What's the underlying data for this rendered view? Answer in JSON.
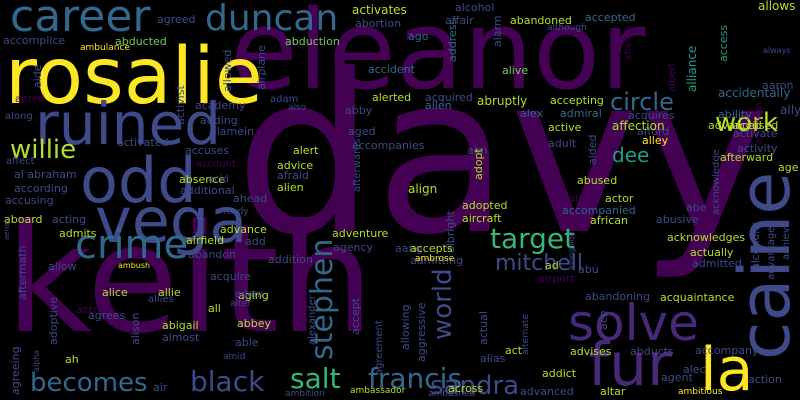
{
  "cloud": {
    "palette": [
      "#440154",
      "#482878",
      "#3e4a89",
      "#31688e",
      "#26828e",
      "#1f9e89",
      "#35b779",
      "#6ece58",
      "#b5de2b",
      "#fde725"
    ],
    "words": [
      {
        "text": "davy",
        "color": "#440154"
      },
      {
        "text": "keith",
        "color": "#440154"
      },
      {
        "text": "eleanor",
        "color": "#440154"
      },
      {
        "text": "rosalie",
        "color": "#fde725"
      },
      {
        "text": "caine",
        "color": "#3e4a89"
      },
      {
        "text": "ruined",
        "color": "#3e4a89"
      },
      {
        "text": "odd",
        "color": "#3e4a89"
      },
      {
        "text": "vega",
        "color": "#3e4a89"
      },
      {
        "text": "solve",
        "color": "#482878"
      },
      {
        "text": "career",
        "color": "#31688e"
      },
      {
        "text": "duncan",
        "color": "#31688e"
      },
      {
        "text": "fur",
        "color": "#482878"
      },
      {
        "text": "la",
        "color": "#fde725"
      },
      {
        "text": "crime",
        "color": "#31688e"
      },
      {
        "text": "work",
        "color": "#b5de2b"
      },
      {
        "text": "target",
        "color": "#35b779"
      },
      {
        "text": "circle",
        "color": "#31688e"
      },
      {
        "text": "willie",
        "color": "#b5de2b"
      },
      {
        "text": "salt",
        "color": "#35b779"
      },
      {
        "text": "francis",
        "color": "#31688e"
      },
      {
        "text": "sandra",
        "color": "#3e4a89"
      },
      {
        "text": "black",
        "color": "#3e4a89"
      },
      {
        "text": "becomes",
        "color": "#31688e"
      },
      {
        "text": "stephen",
        "color": "#31688e"
      },
      {
        "text": "world",
        "color": "#3e4a89"
      },
      {
        "text": "mitchell",
        "color": "#3e4a89"
      },
      {
        "text": "dee",
        "color": "#1f9e89"
      },
      {
        "text": "abduction",
        "color": "#6ece58"
      },
      {
        "text": "aaron",
        "color": "#3e4a89"
      },
      {
        "text": "alliance",
        "color": "#1f9e89"
      },
      {
        "text": "access",
        "color": "#1f9e89"
      },
      {
        "text": "allows",
        "color": "#b5de2b"
      },
      {
        "text": "activates",
        "color": "#b5de2b"
      },
      {
        "text": "alcohol",
        "color": "#3e4a89"
      },
      {
        "text": "agreed",
        "color": "#3e4a89"
      },
      {
        "text": "accomplice",
        "color": "#3e4a89"
      },
      {
        "text": "ambulance",
        "color": "#fde725"
      },
      {
        "text": "abducted",
        "color": "#6ece58"
      },
      {
        "text": "allowed",
        "color": "#3e4a89"
      },
      {
        "text": "airplane",
        "color": "#3e4a89"
      },
      {
        "text": "activist",
        "color": "#3e4a89"
      },
      {
        "text": "aide",
        "color": "#3e4a89"
      },
      {
        "text": "abortion",
        "color": "#3e4a89"
      },
      {
        "text": "address",
        "color": "#31688e"
      },
      {
        "text": "affair",
        "color": "#3e4a89"
      },
      {
        "text": "alarm",
        "color": "#3e4a89"
      },
      {
        "text": "abandoned",
        "color": "#b5de2b"
      },
      {
        "text": "accepted",
        "color": "#31688e"
      },
      {
        "text": "accident",
        "color": "#31688e"
      },
      {
        "text": "alive",
        "color": "#6ece58"
      },
      {
        "text": "afterlife",
        "color": "#440154"
      },
      {
        "text": "albert",
        "color": "#440154"
      },
      {
        "text": "accidentally",
        "color": "#31688e"
      },
      {
        "text": "ally",
        "color": "#3e4a89"
      },
      {
        "text": "american",
        "color": "#440154"
      },
      {
        "text": "ago",
        "color": "#31688e"
      },
      {
        "text": "always",
        "color": "#3e4a89"
      },
      {
        "text": "although",
        "color": "#3e4a89"
      },
      {
        "text": "academy",
        "color": "#3e4a89"
      },
      {
        "text": "adding",
        "color": "#3e4a89"
      },
      {
        "text": "alamein",
        "color": "#3e4a89"
      },
      {
        "text": "adam",
        "color": "#3e4a89"
      },
      {
        "text": "also",
        "color": "#3e4a89"
      },
      {
        "text": "abby",
        "color": "#3e4a89"
      },
      {
        "text": "alerted",
        "color": "#b5de2b"
      },
      {
        "text": "acquired",
        "color": "#3e4a89"
      },
      {
        "text": "allen",
        "color": "#31688e"
      },
      {
        "text": "abruptly",
        "color": "#b5de2b"
      },
      {
        "text": "accepting",
        "color": "#b5de2b"
      },
      {
        "text": "admiral",
        "color": "#31688e"
      },
      {
        "text": "alex",
        "color": "#31688e"
      },
      {
        "text": "acquires",
        "color": "#3e4a89"
      },
      {
        "text": "ability",
        "color": "#31688e"
      },
      {
        "text": "accused",
        "color": "#b5de2b"
      },
      {
        "text": "advanced",
        "color": "#b5de2b"
      },
      {
        "text": "activate",
        "color": "#3e4a89"
      },
      {
        "text": "activity",
        "color": "#3e4a89"
      },
      {
        "text": "altred",
        "color": "#440154"
      },
      {
        "text": "along",
        "color": "#3e4a89"
      },
      {
        "text": "aged",
        "color": "#3e4a89"
      },
      {
        "text": "active",
        "color": "#b5de2b"
      },
      {
        "text": "afford",
        "color": "#3e4a89"
      },
      {
        "text": "alley",
        "color": "#fde725"
      },
      {
        "text": "activated",
        "color": "#3e4a89"
      },
      {
        "text": "accuses",
        "color": "#3e4a89"
      },
      {
        "text": "accompanies",
        "color": "#3e4a89"
      },
      {
        "text": "adult",
        "color": "#3e4a89"
      },
      {
        "text": "aim",
        "color": "#3e4a89"
      },
      {
        "text": "alert",
        "color": "#b5de2b"
      },
      {
        "text": "affection",
        "color": "#b5de2b"
      },
      {
        "text": "afterward",
        "color": "#b5de2b"
      },
      {
        "text": "age",
        "color": "#b5de2b"
      },
      {
        "text": "acknowledge",
        "color": "#3e4a89"
      },
      {
        "text": "affect",
        "color": "#3e4a89"
      },
      {
        "text": "account",
        "color": "#440154"
      },
      {
        "text": "advice",
        "color": "#b5de2b"
      },
      {
        "text": "afraid",
        "color": "#3e4a89"
      },
      {
        "text": "absence",
        "color": "#b5de2b"
      },
      {
        "text": "additional",
        "color": "#3e4a89"
      },
      {
        "text": "acid",
        "color": "#3e4a89"
      },
      {
        "text": "alien",
        "color": "#b5de2b"
      },
      {
        "text": "align",
        "color": "#b5de2b"
      },
      {
        "text": "afterwards",
        "color": "#3e4a89"
      },
      {
        "text": "adopt",
        "color": "#b5de2b"
      },
      {
        "text": "aided",
        "color": "#3e4a89"
      },
      {
        "text": "abused",
        "color": "#b5de2b"
      },
      {
        "text": "actor",
        "color": "#b5de2b"
      },
      {
        "text": "al abraham",
        "color": "#3e4a89"
      },
      {
        "text": "according",
        "color": "#3e4a89"
      },
      {
        "text": "accusing",
        "color": "#3e4a89"
      },
      {
        "text": "ahead",
        "color": "#3e4a89"
      },
      {
        "text": "already",
        "color": "#3e4a89"
      },
      {
        "text": "alan",
        "color": "#440154"
      },
      {
        "text": "accompanied",
        "color": "#31688e"
      },
      {
        "text": "abusive",
        "color": "#3e4a89"
      },
      {
        "text": "abe",
        "color": "#3e4a89"
      },
      {
        "text": "aboard",
        "color": "#b5de2b"
      },
      {
        "text": "acting",
        "color": "#3e4a89"
      },
      {
        "text": "adopted",
        "color": "#b5de2b"
      },
      {
        "text": "aircraft",
        "color": "#b5de2b"
      },
      {
        "text": "african",
        "color": "#b5de2b"
      },
      {
        "text": "advance",
        "color": "#b5de2b"
      },
      {
        "text": "admits",
        "color": "#b5de2b"
      },
      {
        "text": "airfield",
        "color": "#b5de2b"
      },
      {
        "text": "adventure",
        "color": "#b5de2b"
      },
      {
        "text": "aang",
        "color": "#3e4a89"
      },
      {
        "text": "albright",
        "color": "#3e4a89"
      },
      {
        "text": "acknowledges",
        "color": "#b5de2b"
      },
      {
        "text": "admitted",
        "color": "#3e4a89"
      },
      {
        "text": "alcoholic",
        "color": "#3e4a89"
      },
      {
        "text": "advantage",
        "color": "#3e4a89"
      },
      {
        "text": "achieve",
        "color": "#3e4a89"
      },
      {
        "text": "abandon",
        "color": "#3e4a89"
      },
      {
        "text": "add",
        "color": "#3e4a89"
      },
      {
        "text": "accepts",
        "color": "#b5de2b"
      },
      {
        "text": "agency",
        "color": "#3e4a89"
      },
      {
        "text": "admitting",
        "color": "#3e4a89"
      },
      {
        "text": "ambrose",
        "color": "#fde725"
      },
      {
        "text": "alongside",
        "color": "#3e4a89"
      },
      {
        "text": "actually",
        "color": "#b5de2b"
      },
      {
        "text": "allow",
        "color": "#3e4a89"
      },
      {
        "text": "ambush",
        "color": "#fde725"
      },
      {
        "text": "addition",
        "color": "#3e4a89"
      },
      {
        "text": "ad",
        "color": "#b5de2b"
      },
      {
        "text": "abu",
        "color": "#3e4a89"
      },
      {
        "text": "airport",
        "color": "#440154"
      },
      {
        "text": "abandoning",
        "color": "#3e4a89"
      },
      {
        "text": "acquaintance",
        "color": "#b5de2b"
      },
      {
        "text": "aftermath",
        "color": "#3e4a89"
      },
      {
        "text": "alice",
        "color": "#b5de2b"
      },
      {
        "text": "allie",
        "color": "#b5de2b"
      },
      {
        "text": "acquire",
        "color": "#3e4a89"
      },
      {
        "text": "aging",
        "color": "#b5de2b"
      },
      {
        "text": "alexander",
        "color": "#3e4a89"
      },
      {
        "text": "actress",
        "color": "#440154"
      },
      {
        "text": "agrees",
        "color": "#3e4a89"
      },
      {
        "text": "abigail",
        "color": "#b5de2b"
      },
      {
        "text": "abbey",
        "color": "#b5de2b"
      },
      {
        "text": "agreeing",
        "color": "#3e4a89"
      },
      {
        "text": "adoptive",
        "color": "#3e4a89"
      },
      {
        "text": "alison",
        "color": "#3e4a89"
      },
      {
        "text": "almost",
        "color": "#3e4a89"
      },
      {
        "text": "able",
        "color": "#3e4a89"
      },
      {
        "text": "allowing",
        "color": "#3e4a89"
      },
      {
        "text": "aggressive",
        "color": "#3e4a89"
      },
      {
        "text": "accept",
        "color": "#3e4a89"
      },
      {
        "text": "actual",
        "color": "#3e4a89"
      },
      {
        "text": "alternate",
        "color": "#3e4a89"
      },
      {
        "text": "ace",
        "color": "#3e4a89"
      },
      {
        "text": "abducts",
        "color": "#3e4a89"
      },
      {
        "text": "accompany",
        "color": "#3e4a89"
      },
      {
        "text": "agreement",
        "color": "#3e4a89"
      },
      {
        "text": "alpha",
        "color": "#3e4a89"
      },
      {
        "text": "ah",
        "color": "#b5de2b"
      },
      {
        "text": "amid",
        "color": "#3e4a89"
      },
      {
        "text": "alias",
        "color": "#3e4a89"
      },
      {
        "text": "act",
        "color": "#b5de2b"
      },
      {
        "text": "advises",
        "color": "#b5de2b"
      },
      {
        "text": "alec",
        "color": "#3e4a89"
      },
      {
        "text": "agent",
        "color": "#3e4a89"
      },
      {
        "text": "action",
        "color": "#3e4a89"
      },
      {
        "text": "ambition",
        "color": "#3e4a89"
      },
      {
        "text": "ambassador",
        "color": "#b5de2b"
      },
      {
        "text": "ambushed",
        "color": "#3e4a89"
      },
      {
        "text": "across",
        "color": "#b5de2b"
      },
      {
        "text": "addict",
        "color": "#b5de2b"
      },
      {
        "text": "advanced",
        "color": "#3e4a89"
      },
      {
        "text": "altar",
        "color": "#b5de2b"
      },
      {
        "text": "ambitious",
        "color": "#fde725"
      },
      {
        "text": "air",
        "color": "#3e4a89"
      },
      {
        "text": "aerial",
        "color": "#3e4a89"
      },
      {
        "text": "allies",
        "color": "#3e4a89"
      },
      {
        "text": "alter",
        "color": "#3e4a89"
      },
      {
        "text": "adam",
        "color": "#3e4a89"
      },
      {
        "text": "all",
        "color": "#b5de2b"
      }
    ]
  }
}
